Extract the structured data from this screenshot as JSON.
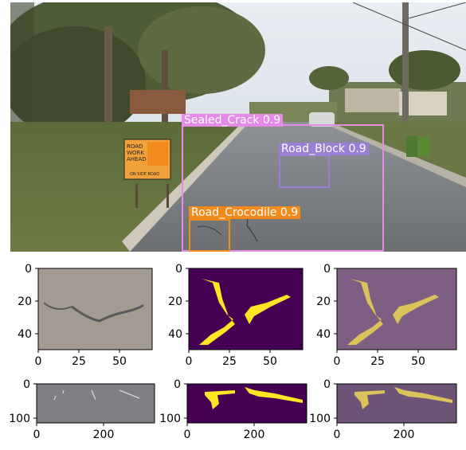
{
  "detections": [
    {
      "label": "Sealed_Crack",
      "score": "0.9",
      "color": "#e58ae6"
    },
    {
      "label": "Road_Block",
      "score": "0.9",
      "color": "#9b7fd6"
    },
    {
      "label": "Road_Crocodile",
      "score": "0.9",
      "color": "#f28a1c"
    }
  ],
  "sign": {
    "line1": "ROAD",
    "line2": "WORK",
    "line3": "AHEAD",
    "footer": "ON SIDE ROAD"
  },
  "row1": {
    "y_ticks": [
      "0",
      "20",
      "40"
    ],
    "x_ticks": [
      "0",
      "25",
      "50"
    ]
  },
  "row2": {
    "y_ticks": [
      "0",
      "100"
    ],
    "x_ticks": [
      "0",
      "200"
    ]
  },
  "colors": {
    "mask_bg": "#440154",
    "mask_fg": "#fde725"
  }
}
